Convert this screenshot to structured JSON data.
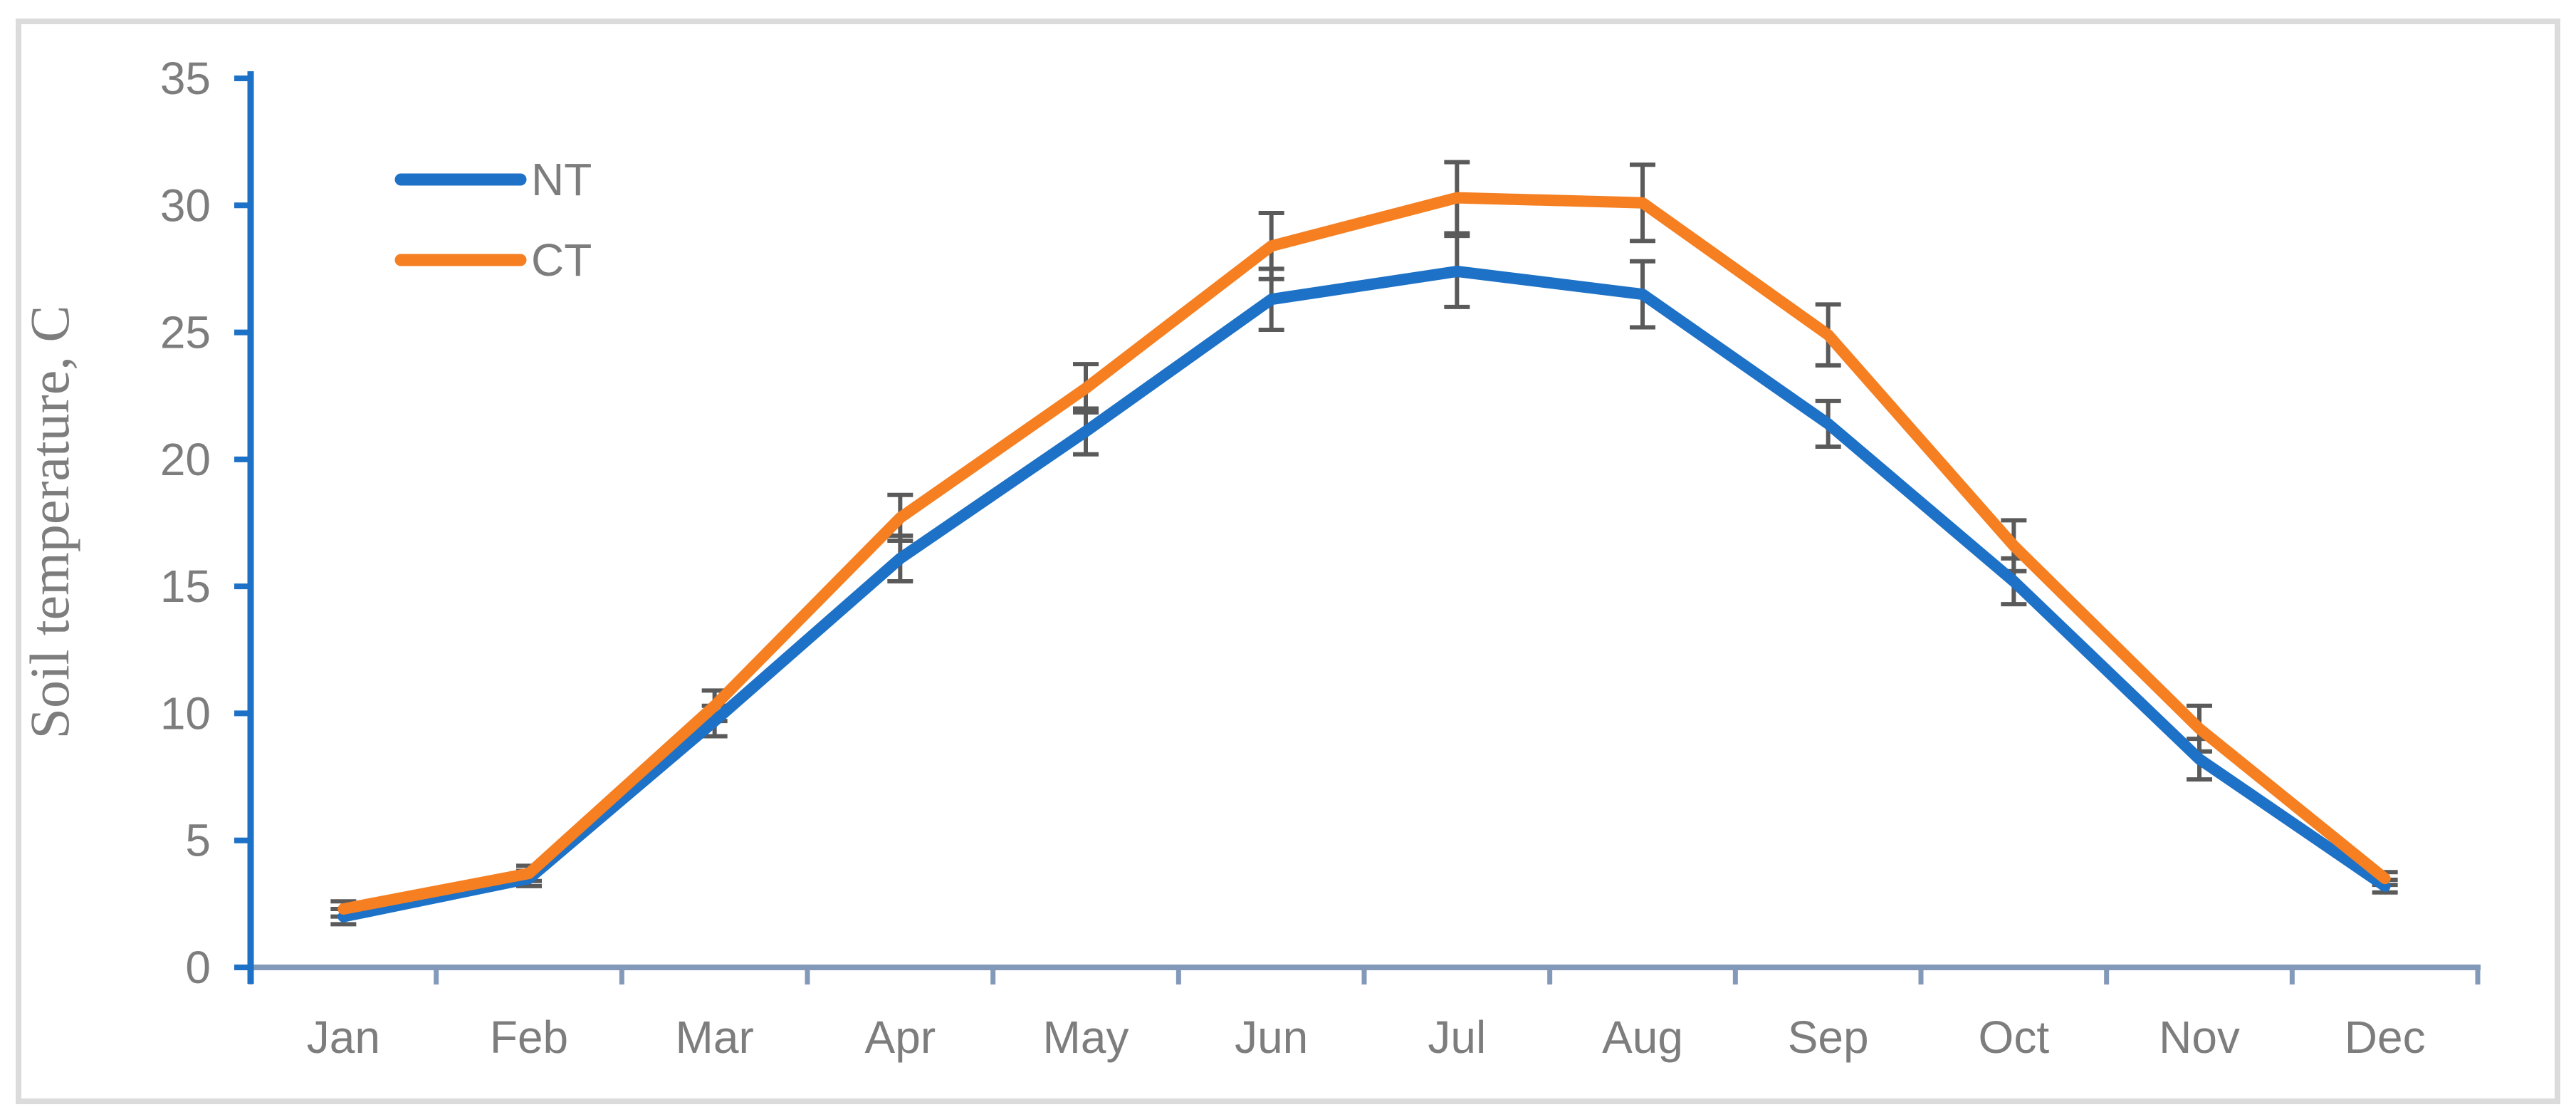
{
  "chart_data": {
    "type": "line",
    "title": "",
    "xlabel": "",
    "ylabel": "Soil temperature, C",
    "categories": [
      "Jan",
      "Feb",
      "Mar",
      "Apr",
      "May",
      "Jun",
      "Jul",
      "Aug",
      "Sep",
      "Oct",
      "Nov",
      "Dec"
    ],
    "ylim": [
      0,
      35
    ],
    "ytick_step": 5,
    "ytick_labels": [
      "0",
      "5",
      "10",
      "15",
      "20",
      "25",
      "30",
      "35"
    ],
    "grid": false,
    "legend_position": "inside-upper-left",
    "series": [
      {
        "name": "NT",
        "color": "#1D71C6",
        "values": [
          2.0,
          3.5,
          9.7,
          16.1,
          21.1,
          26.3,
          27.4,
          26.5,
          21.4,
          15.2,
          8.2,
          3.2
        ],
        "errors": [
          0.3,
          0.3,
          0.6,
          0.9,
          0.9,
          1.2,
          1.4,
          1.3,
          0.9,
          0.9,
          0.8,
          0.25
        ]
      },
      {
        "name": "CT",
        "color": "#F57F21",
        "values": [
          2.3,
          3.7,
          10.3,
          17.7,
          22.8,
          28.4,
          30.3,
          30.1,
          24.9,
          16.6,
          9.4,
          3.5
        ],
        "errors": [
          0.3,
          0.3,
          0.6,
          0.9,
          0.95,
          1.3,
          1.4,
          1.5,
          1.2,
          1.0,
          0.9,
          0.25
        ]
      }
    ],
    "colors": {
      "y_axis": "#1D71C6",
      "x_axis": "#8299BA",
      "tick_label": "#7D7D7D",
      "axis_title": "#7D7D7D",
      "legend_label": "#7D7D7D",
      "error_bar": "#5A5A5A",
      "frame_border": "#DBDBDB",
      "background": "#FFFFFF"
    }
  }
}
